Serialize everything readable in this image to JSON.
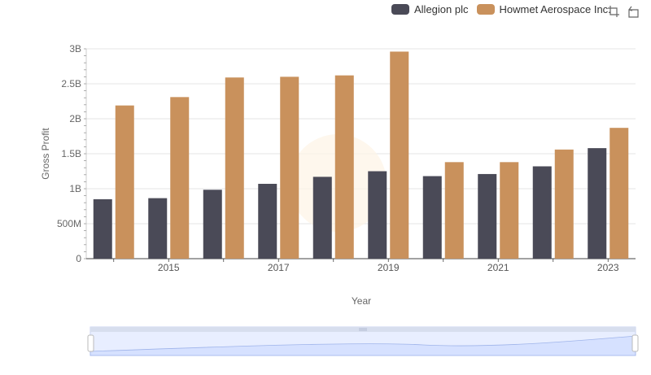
{
  "legend": {
    "items": [
      {
        "name": "Allegion plc",
        "color": "#4a4a57"
      },
      {
        "name": "Howmet Aerospace Inc.",
        "color": "#c9915c"
      }
    ]
  },
  "toolbar": {
    "icons": [
      "zoom-select-icon",
      "zoom-reset-icon"
    ]
  },
  "chart_data": {
    "type": "bar",
    "xlabel": "Year",
    "ylabel": "Gross Profit",
    "categories": [
      "2014",
      "2015",
      "2016",
      "2017",
      "2018",
      "2019",
      "2020",
      "2021",
      "2022",
      "2023"
    ],
    "x_tick_labels": [
      "2015",
      "2017",
      "2019",
      "2021",
      "2023"
    ],
    "y_ticks": [
      {
        "value": 0,
        "label": "0"
      },
      {
        "value": 500000000,
        "label": "500M"
      },
      {
        "value": 1000000000,
        "label": "1B"
      },
      {
        "value": 1500000000,
        "label": "1.5B"
      },
      {
        "value": 2000000000,
        "label": "2B"
      },
      {
        "value": 2500000000,
        "label": "2.5B"
      },
      {
        "value": 3000000000,
        "label": "3B"
      }
    ],
    "ylim": [
      0,
      3000000000
    ],
    "series": [
      {
        "name": "Allegion plc",
        "color": "#4a4a57",
        "values": [
          850000000,
          865000000,
          985000000,
          1070000000,
          1170000000,
          1250000000,
          1180000000,
          1210000000,
          1320000000,
          1580000000
        ]
      },
      {
        "name": "Howmet Aerospace Inc.",
        "color": "#c9915c",
        "values": [
          2190000000,
          2310000000,
          2590000000,
          2600000000,
          2620000000,
          2960000000,
          1380000000,
          1380000000,
          1560000000,
          1870000000
        ]
      }
    ],
    "grid": true,
    "legend_position": "top-right",
    "navigator": true
  }
}
